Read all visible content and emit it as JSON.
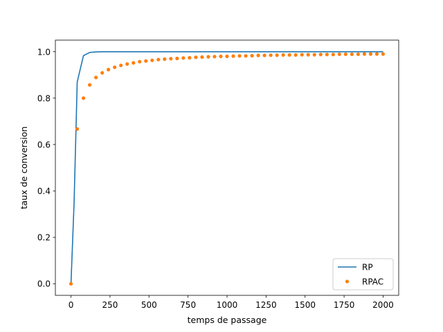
{
  "chart_data": {
    "type": "line",
    "xlabel": "temps de passage",
    "ylabel": "taux de conversion",
    "xlim": [
      -100,
      2100
    ],
    "ylim": [
      -0.05,
      1.05
    ],
    "xticks": [
      0,
      250,
      500,
      750,
      1000,
      1250,
      1500,
      1750,
      2000
    ],
    "xtick_labels": [
      "0",
      "250",
      "500",
      "750",
      "1000",
      "1250",
      "1500",
      "1750",
      "2000"
    ],
    "yticks": [
      0.0,
      0.2,
      0.4,
      0.6,
      0.8,
      1.0
    ],
    "ytick_labels": [
      "0.0",
      "0.2",
      "0.4",
      "0.6",
      "0.8",
      "1.0"
    ],
    "grid": false,
    "legend_position": "lower right",
    "series": [
      {
        "name": "RP",
        "style": "line",
        "color": "#1f77b4",
        "x": [
          0,
          20,
          40,
          80,
          120,
          160,
          200,
          300,
          500,
          1000,
          1500,
          2000
        ],
        "y": [
          0.0,
          0.35,
          0.87,
          0.983,
          0.997,
          0.999,
          1.0,
          1.0,
          1.0,
          1.0,
          1.0,
          1.0
        ]
      },
      {
        "name": "RPAC",
        "style": "dots",
        "color": "#ff7f0e",
        "x": [
          0,
          40,
          80,
          120,
          160,
          200,
          240,
          280,
          320,
          360,
          400,
          440,
          480,
          520,
          560,
          600,
          640,
          680,
          720,
          760,
          800,
          840,
          880,
          920,
          960,
          1000,
          1040,
          1080,
          1120,
          1160,
          1200,
          1240,
          1280,
          1320,
          1360,
          1400,
          1440,
          1480,
          1520,
          1560,
          1600,
          1640,
          1680,
          1720,
          1760,
          1800,
          1840,
          1880,
          1920,
          1960,
          2000
        ],
        "y": [
          0.0,
          0.667,
          0.8,
          0.857,
          0.889,
          0.909,
          0.923,
          0.933,
          0.941,
          0.947,
          0.952,
          0.957,
          0.96,
          0.963,
          0.966,
          0.968,
          0.97,
          0.971,
          0.973,
          0.974,
          0.976,
          0.977,
          0.978,
          0.979,
          0.98,
          0.98,
          0.981,
          0.982,
          0.982,
          0.983,
          0.984,
          0.984,
          0.985,
          0.985,
          0.986,
          0.986,
          0.986,
          0.987,
          0.987,
          0.987,
          0.988,
          0.988,
          0.988,
          0.989,
          0.989,
          0.989,
          0.989,
          0.99,
          0.99,
          0.99,
          0.99
        ]
      }
    ]
  }
}
